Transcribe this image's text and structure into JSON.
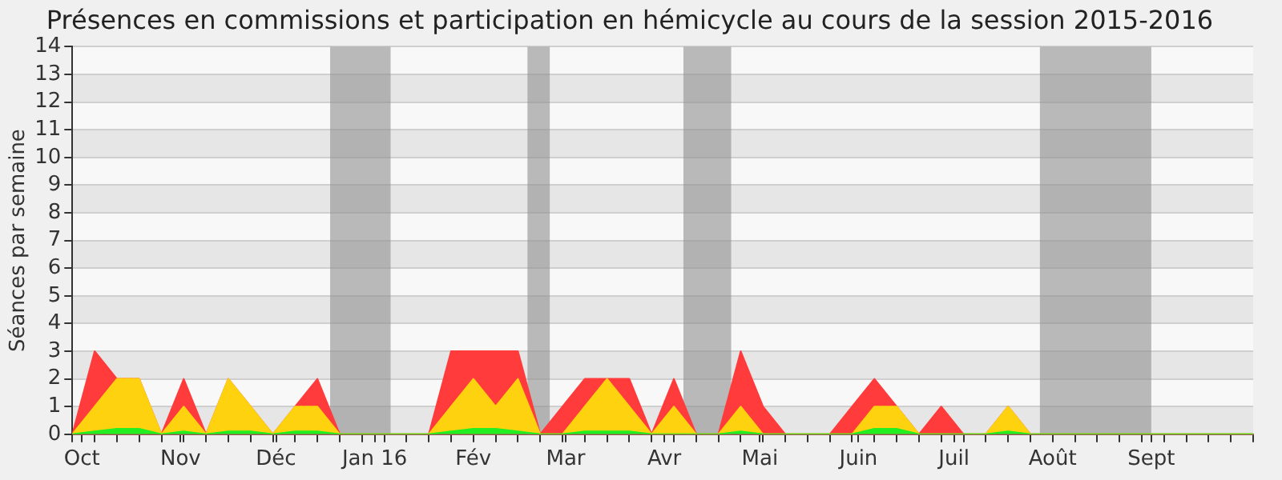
{
  "chart_data": {
    "type": "area",
    "title": "Présences en commissions et participation en hémicycle au cours de la session 2015-2016",
    "ylabel": "Séances par semaine",
    "x": [
      "2015-09-28",
      "2015-10-05",
      "2015-10-12",
      "2015-10-19",
      "2015-10-26",
      "2015-11-02",
      "2015-11-09",
      "2015-11-16",
      "2015-11-23",
      "2015-11-30",
      "2015-12-07",
      "2015-12-14",
      "2015-12-21",
      "2015-12-28",
      "2016-01-04",
      "2016-01-11",
      "2016-01-18",
      "2016-01-25",
      "2016-02-01",
      "2016-02-08",
      "2016-02-15",
      "2016-02-22",
      "2016-02-29",
      "2016-03-07",
      "2016-03-14",
      "2016-03-21",
      "2016-03-28",
      "2016-04-04",
      "2016-04-11",
      "2016-04-18",
      "2016-04-25",
      "2016-05-02",
      "2016-05-09",
      "2016-05-16",
      "2016-05-23",
      "2016-05-30",
      "2016-06-06",
      "2016-06-13",
      "2016-06-20",
      "2016-06-27",
      "2016-07-04",
      "2016-07-11",
      "2016-07-18",
      "2016-07-25",
      "2016-08-01",
      "2016-08-08",
      "2016-08-15",
      "2016-08-22",
      "2016-08-29",
      "2016-09-05",
      "2016-09-12",
      "2016-09-19",
      "2016-09-26",
      "2016-10-03"
    ],
    "stacked": true,
    "series": [
      {
        "color": "#22ee22",
        "values": [
          0,
          0.1,
          0.2,
          0.2,
          0,
          0.1,
          0,
          0.1,
          0.1,
          0,
          0.1,
          0.1,
          0,
          0,
          0,
          0,
          0,
          0.1,
          0.2,
          0.2,
          0.1,
          0,
          0,
          0.1,
          0.1,
          0.1,
          0,
          0,
          0,
          0,
          0.1,
          0,
          0,
          0,
          0,
          0,
          0.2,
          0.2,
          0,
          0,
          0,
          0,
          0.1,
          0,
          0,
          0,
          0,
          0,
          0,
          0,
          0,
          0,
          0,
          0
        ]
      },
      {
        "color": "#ffd20f",
        "values": [
          0,
          0.9,
          1.8,
          1.8,
          0,
          0.9,
          0,
          1.9,
          0.9,
          0,
          0.9,
          0.9,
          0,
          0,
          0,
          0,
          0,
          0.9,
          1.8,
          0.8,
          1.9,
          0,
          0,
          0.9,
          1.9,
          0.9,
          0,
          1,
          0,
          0,
          0.9,
          0,
          0,
          0,
          0,
          0,
          0.8,
          0.8,
          0,
          0,
          0,
          0,
          0.9,
          0,
          0,
          0,
          0,
          0,
          0,
          0,
          0,
          0,
          0,
          0
        ]
      },
      {
        "color": "#ff3b3b",
        "values": [
          0,
          2,
          0,
          0,
          0,
          1,
          0,
          0,
          0,
          0,
          0,
          1,
          0,
          0,
          0,
          0,
          0,
          2,
          1,
          2,
          1,
          0,
          1,
          1,
          0,
          1,
          0,
          1,
          0,
          0,
          2,
          1,
          0,
          0,
          0,
          1,
          1,
          0,
          0,
          1,
          0,
          0,
          0,
          0,
          0,
          0,
          0,
          0,
          0,
          0,
          0,
          0,
          0,
          0
        ]
      }
    ],
    "xlim": [
      "2015-09-28",
      "2016-10-03"
    ],
    "xticks": [
      {
        "value": "2015-09-28",
        "label": null
      },
      {
        "value": "2015-10-01",
        "label": "Oct"
      },
      {
        "value": "2015-10-05",
        "label": null
      },
      {
        "value": "2015-10-12",
        "label": null
      },
      {
        "value": "2015-10-19",
        "label": null
      },
      {
        "value": "2015-10-26",
        "label": null
      },
      {
        "value": "2015-11-01",
        "label": "Nov"
      },
      {
        "value": "2015-11-02",
        "label": null
      },
      {
        "value": "2015-11-09",
        "label": null
      },
      {
        "value": "2015-11-16",
        "label": null
      },
      {
        "value": "2015-11-23",
        "label": null
      },
      {
        "value": "2015-11-30",
        "label": null
      },
      {
        "value": "2015-12-01",
        "label": "Déc"
      },
      {
        "value": "2015-12-07",
        "label": null
      },
      {
        "value": "2015-12-14",
        "label": null
      },
      {
        "value": "2015-12-21",
        "label": null
      },
      {
        "value": "2015-12-28",
        "label": null
      },
      {
        "value": "2016-01-01",
        "label": "Jan 16"
      },
      {
        "value": "2016-01-04",
        "label": null
      },
      {
        "value": "2016-01-11",
        "label": null
      },
      {
        "value": "2016-01-18",
        "label": null
      },
      {
        "value": "2016-01-25",
        "label": null
      },
      {
        "value": "2016-02-01",
        "label": "Fév"
      },
      {
        "value": "2016-02-08",
        "label": null
      },
      {
        "value": "2016-02-15",
        "label": null
      },
      {
        "value": "2016-02-22",
        "label": null
      },
      {
        "value": "2016-02-29",
        "label": null
      },
      {
        "value": "2016-03-01",
        "label": "Mar"
      },
      {
        "value": "2016-03-07",
        "label": null
      },
      {
        "value": "2016-03-14",
        "label": null
      },
      {
        "value": "2016-03-21",
        "label": null
      },
      {
        "value": "2016-03-28",
        "label": null
      },
      {
        "value": "2016-04-01",
        "label": "Avr"
      },
      {
        "value": "2016-04-04",
        "label": null
      },
      {
        "value": "2016-04-11",
        "label": null
      },
      {
        "value": "2016-04-18",
        "label": null
      },
      {
        "value": "2016-04-25",
        "label": null
      },
      {
        "value": "2016-05-01",
        "label": "Mai"
      },
      {
        "value": "2016-05-02",
        "label": null
      },
      {
        "value": "2016-05-09",
        "label": null
      },
      {
        "value": "2016-05-16",
        "label": null
      },
      {
        "value": "2016-05-23",
        "label": null
      },
      {
        "value": "2016-05-30",
        "label": null
      },
      {
        "value": "2016-06-01",
        "label": "Juin"
      },
      {
        "value": "2016-06-06",
        "label": null
      },
      {
        "value": "2016-06-13",
        "label": null
      },
      {
        "value": "2016-06-20",
        "label": null
      },
      {
        "value": "2016-06-27",
        "label": null
      },
      {
        "value": "2016-07-01",
        "label": "Juil"
      },
      {
        "value": "2016-07-04",
        "label": null
      },
      {
        "value": "2016-07-11",
        "label": null
      },
      {
        "value": "2016-07-18",
        "label": null
      },
      {
        "value": "2016-07-25",
        "label": null
      },
      {
        "value": "2016-08-01",
        "label": "Août"
      },
      {
        "value": "2016-08-08",
        "label": null
      },
      {
        "value": "2016-08-15",
        "label": null
      },
      {
        "value": "2016-08-22",
        "label": null
      },
      {
        "value": "2016-08-29",
        "label": null
      },
      {
        "value": "2016-09-01",
        "label": "Sept"
      },
      {
        "value": "2016-09-05",
        "label": null
      },
      {
        "value": "2016-09-12",
        "label": null
      },
      {
        "value": "2016-09-19",
        "label": null
      },
      {
        "value": "2016-09-26",
        "label": null
      },
      {
        "value": "2016-10-03",
        "label": null
      }
    ],
    "ylim": [
      0,
      14
    ],
    "yticks": [
      0,
      1,
      2,
      3,
      4,
      5,
      6,
      7,
      8,
      9,
      10,
      11,
      12,
      13,
      14
    ],
    "grid": "y",
    "bands": [
      {
        "axis": "x",
        "from": "2015-12-18",
        "to": "2016-01-06",
        "color": "#909090"
      },
      {
        "axis": "x",
        "from": "2016-02-18",
        "to": "2016-02-25",
        "color": "#909090"
      },
      {
        "axis": "x",
        "from": "2016-04-07",
        "to": "2016-04-22",
        "color": "#909090"
      },
      {
        "axis": "x",
        "from": "2016-07-28",
        "to": "2016-09-01",
        "color": "#909090"
      }
    ]
  }
}
